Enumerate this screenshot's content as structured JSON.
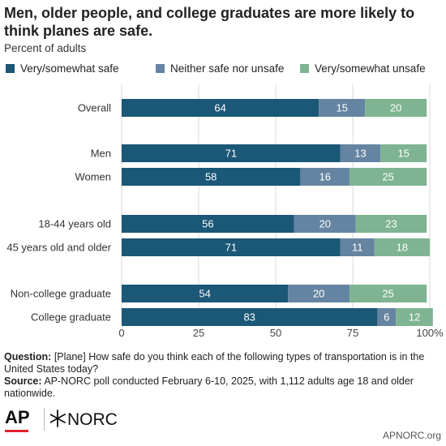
{
  "header": {
    "title": "Men, older people, and college graduates are more likely to think planes are safe.",
    "subtitle": "Percent of adults"
  },
  "colors": {
    "safe": "#1b5777",
    "neither": "#6584a1",
    "unsafe": "#7eb491",
    "gridline": "#d9d9d9",
    "text": "#222222"
  },
  "chart_data": {
    "type": "bar",
    "orientation": "horizontal",
    "stacked": true,
    "categories": [
      "Overall",
      "Men",
      "Women",
      "18-44 years old",
      "45 years old and older",
      "Non-college graduate",
      "College graduate"
    ],
    "series": [
      {
        "name": "Very/somewhat safe",
        "values": [
          64,
          71,
          58,
          56,
          71,
          54,
          83
        ]
      },
      {
        "name": "Neither safe nor unsafe",
        "values": [
          15,
          13,
          16,
          20,
          11,
          20,
          6
        ]
      },
      {
        "name": "Very/somewhat unsafe",
        "values": [
          20,
          15,
          25,
          23,
          18,
          25,
          12
        ]
      }
    ],
    "xlim": [
      0,
      100
    ],
    "xticks": [
      "0",
      "25",
      "50",
      "75",
      "100%"
    ],
    "legend_position": "top",
    "grid": true
  },
  "footer": {
    "question_label": "Question:",
    "question_text": " [Plane] How safe do you think each of the following types of transportation is in the United States today?",
    "source_label": "Source:",
    "source_text": " AP-NORC poll conducted February 6-10, 2025, with 1,112 adults age 18 and older nationwide.",
    "ap_logo_text": "AP",
    "norc_logo_text": "NORC",
    "url": "APNORC.org"
  }
}
